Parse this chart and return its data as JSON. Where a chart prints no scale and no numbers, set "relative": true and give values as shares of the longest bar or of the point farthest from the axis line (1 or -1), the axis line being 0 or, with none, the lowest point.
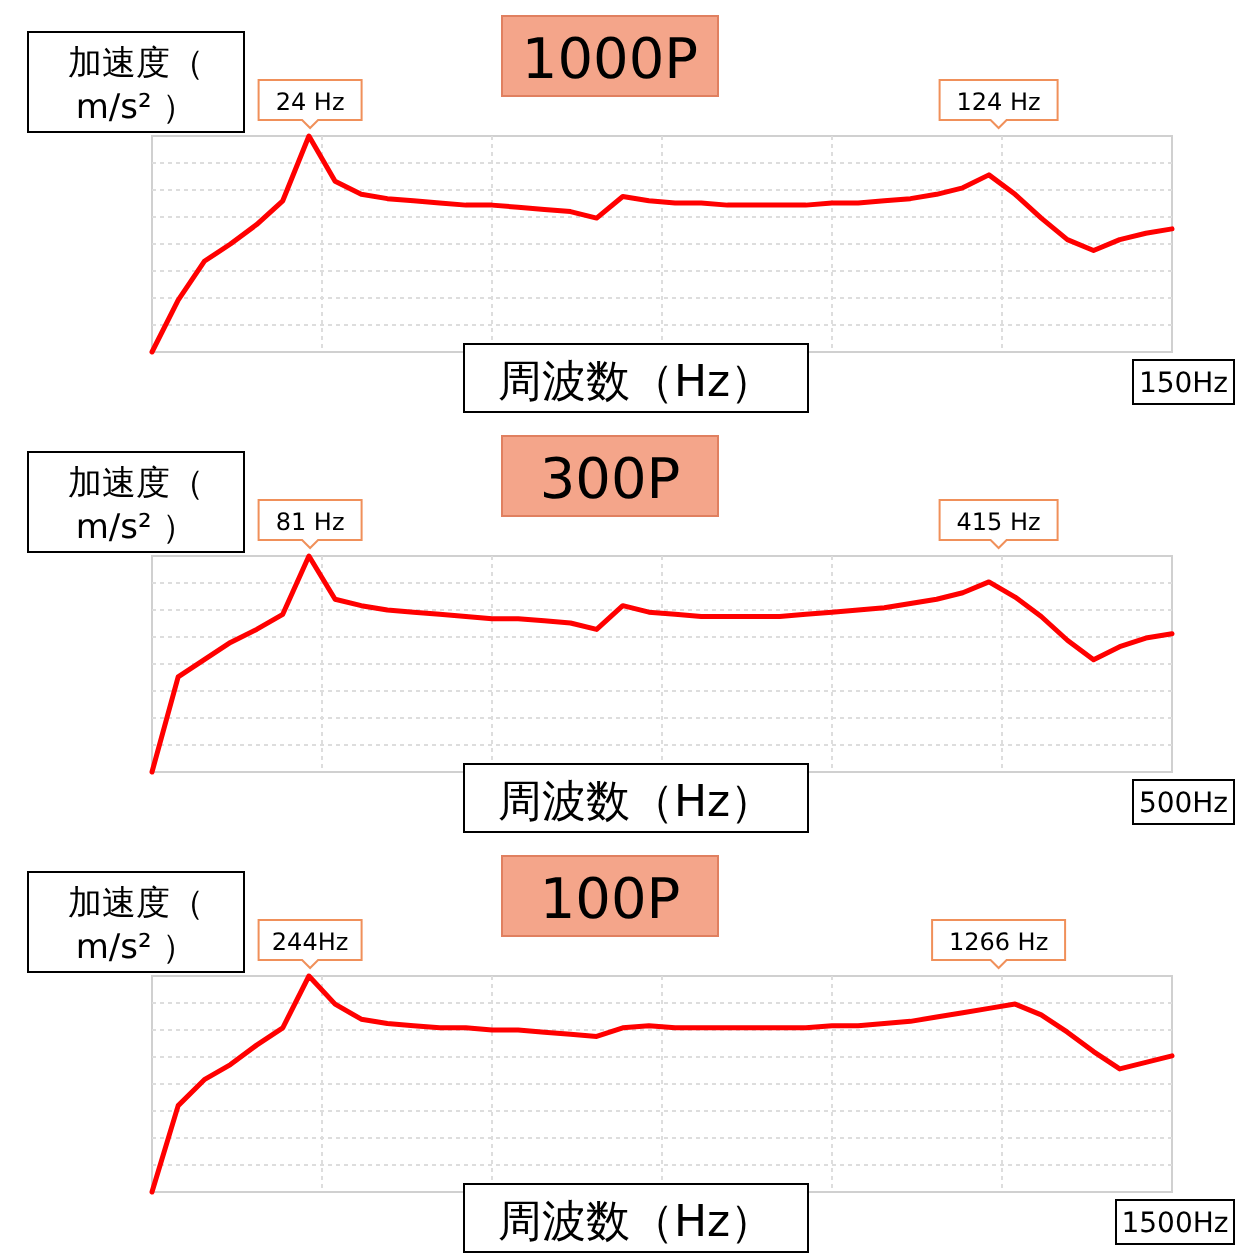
{
  "chart_data": [
    {
      "type": "line",
      "title": "1000P",
      "xlabel": "周波数（Hz）",
      "ylabel": "加速度（ m/s² ）",
      "relative": true,
      "grid": true,
      "categories": [
        null,
        null,
        null,
        null,
        null,
        null,
        null,
        null,
        null,
        null,
        null,
        null,
        null,
        null,
        null,
        null,
        null,
        null,
        null,
        null,
        null,
        null,
        null,
        null,
        null,
        null,
        null,
        null,
        null,
        null,
        null,
        null,
        null,
        null,
        null,
        null,
        null,
        null,
        null,
        null
      ],
      "series": [
        {
          "color": "#ff0000",
          "values": [
            0,
            0.24,
            0.42,
            0.5,
            0.59,
            0.7,
            1,
            0.79,
            0.73,
            0.71,
            0.7,
            0.69,
            0.68,
            0.68,
            0.67,
            0.66,
            0.65,
            0.62,
            0.72,
            0.7,
            0.69,
            0.69,
            0.68,
            0.68,
            0.68,
            0.68,
            0.69,
            0.69,
            0.7,
            0.71,
            0.73,
            0.76,
            0.82,
            0.73,
            0.62,
            0.52,
            0.47,
            0.52,
            0.55,
            0.57
          ]
        }
      ],
      "annotations": [
        "24 Hz",
        "124 Hz",
        "150Hz"
      ]
    },
    {
      "type": "line",
      "title": "300P",
      "xlabel": "周波数（Hz）",
      "ylabel": "加速度（ m/s² ）",
      "relative": true,
      "grid": true,
      "categories": [
        null,
        null,
        null,
        null,
        null,
        null,
        null,
        null,
        null,
        null,
        null,
        null,
        null,
        null,
        null,
        null,
        null,
        null,
        null,
        null,
        null,
        null,
        null,
        null,
        null,
        null,
        null,
        null,
        null,
        null,
        null,
        null,
        null,
        null,
        null,
        null,
        null,
        null,
        null,
        null
      ],
      "series": [
        {
          "color": "#ff0000",
          "values": [
            0,
            0.44,
            0.52,
            0.6,
            0.66,
            0.73,
            1,
            0.8,
            0.77,
            0.75,
            0.74,
            0.73,
            0.72,
            0.71,
            0.71,
            0.7,
            0.69,
            0.66,
            0.77,
            0.74,
            0.73,
            0.72,
            0.72,
            0.72,
            0.72,
            0.73,
            0.74,
            0.75,
            0.76,
            0.78,
            0.8,
            0.83,
            0.88,
            0.81,
            0.72,
            0.61,
            0.52,
            0.58,
            0.62,
            0.64
          ]
        }
      ],
      "annotations": [
        "81 Hz",
        "415 Hz",
        "500Hz"
      ]
    },
    {
      "type": "line",
      "title": "100P",
      "xlabel": "周波数（Hz）",
      "ylabel": "加速度（ m/s² ）",
      "relative": true,
      "grid": true,
      "categories": [
        null,
        null,
        null,
        null,
        null,
        null,
        null,
        null,
        null,
        null,
        null,
        null,
        null,
        null,
        null,
        null,
        null,
        null,
        null,
        null,
        null,
        null,
        null,
        null,
        null,
        null,
        null,
        null,
        null,
        null,
        null,
        null,
        null,
        null,
        null,
        null,
        null,
        null,
        null,
        null
      ],
      "series": [
        {
          "color": "#ff0000",
          "values": [
            0,
            0.4,
            0.52,
            0.59,
            0.68,
            0.76,
            1,
            0.87,
            0.8,
            0.78,
            0.77,
            0.76,
            0.76,
            0.75,
            0.75,
            0.74,
            0.73,
            0.72,
            0.76,
            0.77,
            0.76,
            0.76,
            0.76,
            0.76,
            0.76,
            0.76,
            0.77,
            0.77,
            0.78,
            0.79,
            0.81,
            0.83,
            0.85,
            0.87,
            0.82,
            0.74,
            0.65,
            0.57,
            0.6,
            0.63
          ]
        }
      ],
      "annotations": [
        "244Hz",
        "1266 Hz",
        "1500Hz"
      ]
    }
  ]
}
